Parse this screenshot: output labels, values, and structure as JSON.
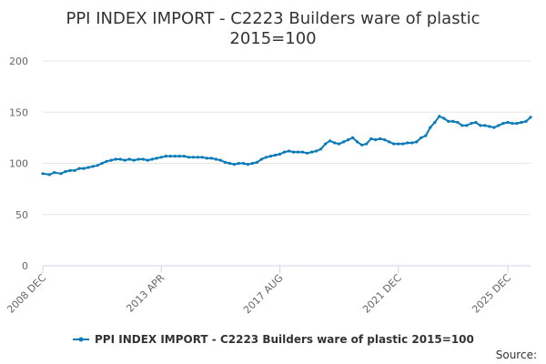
{
  "chart_data": {
    "type": "line",
    "title_lines": [
      "PPI INDEX IMPORT - C2223 Builders ware of plastic",
      "2015=100"
    ],
    "xlabel": "",
    "ylabel": "",
    "ylim": [
      0,
      200
    ],
    "yticks": [
      0,
      50,
      100,
      150,
      200
    ],
    "x_range": [
      "2008 DEC",
      "2025 DEC"
    ],
    "x_ticks": [
      "2008 DEC",
      "2013 APR",
      "2017 AUG",
      "2021 DEC",
      "2025 DEC"
    ],
    "x_tick_positions": [
      0,
      52,
      104,
      156,
      204
    ],
    "grid": true,
    "legend": "bottom",
    "source_label": "Source:",
    "series": [
      {
        "name": "PPI INDEX IMPORT - C2223 Builders ware of plastic 2015=100",
        "color": "#0a7ab8",
        "points": [
          [
            0,
            90
          ],
          [
            3,
            89
          ],
          [
            5,
            91
          ],
          [
            8,
            90
          ],
          [
            10,
            92
          ],
          [
            12,
            93
          ],
          [
            14,
            93
          ],
          [
            16,
            95
          ],
          [
            18,
            95
          ],
          [
            20,
            96
          ],
          [
            22,
            97
          ],
          [
            24,
            98
          ],
          [
            26,
            100
          ],
          [
            28,
            102
          ],
          [
            30,
            103
          ],
          [
            32,
            104
          ],
          [
            34,
            104
          ],
          [
            36,
            103
          ],
          [
            38,
            104
          ],
          [
            40,
            103
          ],
          [
            42,
            104
          ],
          [
            44,
            104
          ],
          [
            46,
            103
          ],
          [
            48,
            104
          ],
          [
            50,
            105
          ],
          [
            52,
            106
          ],
          [
            54,
            107
          ],
          [
            56,
            107
          ],
          [
            58,
            107
          ],
          [
            60,
            107
          ],
          [
            62,
            107
          ],
          [
            64,
            106
          ],
          [
            66,
            106
          ],
          [
            68,
            106
          ],
          [
            70,
            106
          ],
          [
            72,
            105
          ],
          [
            74,
            105
          ],
          [
            76,
            104
          ],
          [
            78,
            103
          ],
          [
            80,
            101
          ],
          [
            82,
            100
          ],
          [
            84,
            99
          ],
          [
            86,
            100
          ],
          [
            88,
            100
          ],
          [
            90,
            99
          ],
          [
            92,
            100
          ],
          [
            94,
            101
          ],
          [
            96,
            104
          ],
          [
            98,
            106
          ],
          [
            100,
            107
          ],
          [
            102,
            108
          ],
          [
            104,
            109
          ],
          [
            106,
            111
          ],
          [
            108,
            112
          ],
          [
            110,
            111
          ],
          [
            112,
            111
          ],
          [
            114,
            111
          ],
          [
            116,
            110
          ],
          [
            118,
            111
          ],
          [
            120,
            112
          ],
          [
            122,
            114
          ],
          [
            124,
            119
          ],
          [
            126,
            122
          ],
          [
            128,
            120
          ],
          [
            130,
            119
          ],
          [
            132,
            121
          ],
          [
            134,
            123
          ],
          [
            136,
            125
          ],
          [
            138,
            121
          ],
          [
            140,
            118
          ],
          [
            142,
            119
          ],
          [
            144,
            124
          ],
          [
            146,
            123
          ],
          [
            148,
            124
          ],
          [
            150,
            123
          ],
          [
            152,
            121
          ],
          [
            154,
            119
          ],
          [
            156,
            119
          ],
          [
            158,
            119
          ],
          [
            160,
            120
          ],
          [
            162,
            120
          ],
          [
            164,
            121
          ],
          [
            166,
            125
          ],
          [
            168,
            127
          ],
          [
            170,
            135
          ],
          [
            172,
            140
          ],
          [
            174,
            146
          ],
          [
            176,
            144
          ],
          [
            178,
            141
          ],
          [
            180,
            141
          ],
          [
            182,
            140
          ],
          [
            184,
            137
          ],
          [
            186,
            137
          ],
          [
            188,
            139
          ],
          [
            190,
            140
          ],
          [
            192,
            137
          ],
          [
            194,
            137
          ],
          [
            196,
            136
          ],
          [
            198,
            135
          ],
          [
            200,
            137
          ],
          [
            202,
            139
          ],
          [
            204,
            140
          ],
          [
            206,
            139
          ],
          [
            208,
            139
          ],
          [
            210,
            140
          ],
          [
            212,
            141
          ],
          [
            214,
            145
          ]
        ]
      }
    ]
  }
}
